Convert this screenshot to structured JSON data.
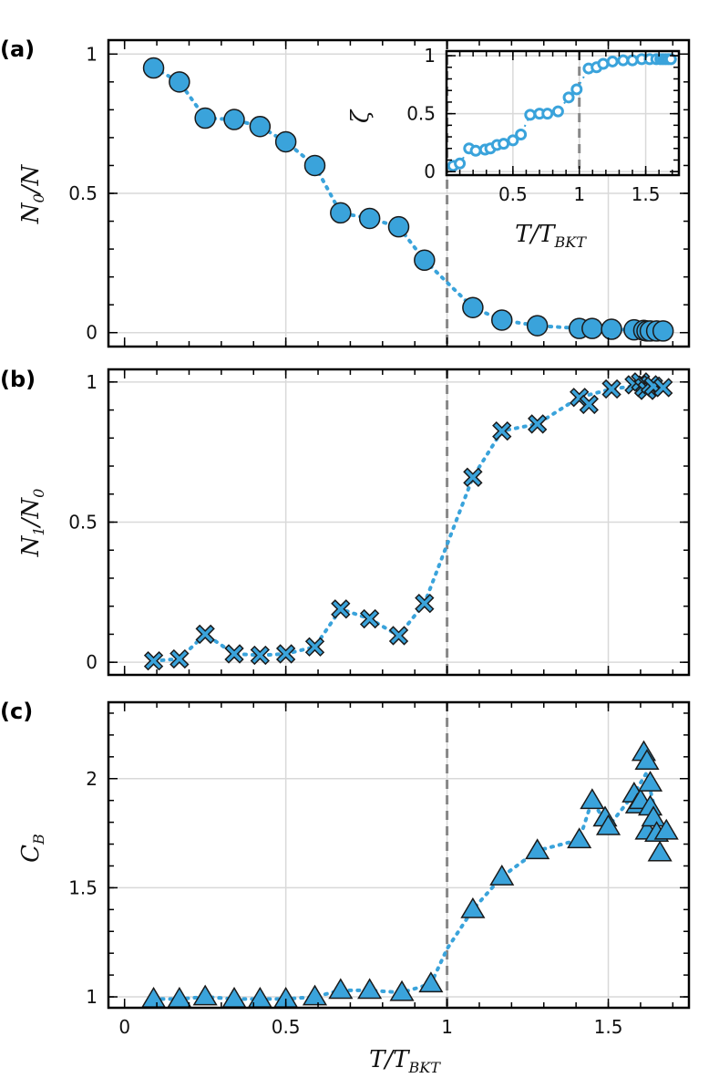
{
  "colors": {
    "marker": "#3aa3db",
    "edge": "#1a1a1a",
    "trend": "#3aa3db",
    "vline": "#888888"
  },
  "chart_data": [
    {
      "panel": "(a)",
      "type": "scatter",
      "marker": "circle",
      "ylabel": "N_0/N",
      "ylabel_main": "N",
      "ylabel_sub": "0",
      "ylabel_rest": "/N",
      "xlim": [
        -0.05,
        1.75
      ],
      "ylim": [
        -0.05,
        1.05
      ],
      "yticks": [
        0,
        0.5,
        1
      ],
      "ytick_labels": [
        "0",
        "0.5",
        "1"
      ],
      "vline_x": 1,
      "x": [
        0.09,
        0.17,
        0.25,
        0.34,
        0.42,
        0.5,
        0.59,
        0.67,
        0.76,
        0.85,
        0.93,
        1.08,
        1.17,
        1.28,
        1.41,
        1.45,
        1.51,
        1.58,
        1.61,
        1.62,
        1.63,
        1.65,
        1.67
      ],
      "y": [
        0.95,
        0.9,
        0.77,
        0.765,
        0.74,
        0.685,
        0.6,
        0.43,
        0.41,
        0.38,
        0.26,
        0.09,
        0.045,
        0.025,
        0.015,
        0.015,
        0.012,
        0.01,
        0.008,
        0.006,
        0.006,
        0.006,
        0.006
      ],
      "trend_x": [
        0.09,
        0.17,
        0.25,
        0.34,
        0.42,
        0.5,
        0.59,
        0.67,
        0.76,
        0.85,
        0.93,
        1.0,
        1.08,
        1.17,
        1.28,
        1.41,
        1.51,
        1.61,
        1.67
      ],
      "trend_y": [
        0.95,
        0.9,
        0.77,
        0.765,
        0.74,
        0.685,
        0.6,
        0.43,
        0.41,
        0.38,
        0.26,
        0.18,
        0.09,
        0.045,
        0.025,
        0.015,
        0.012,
        0.008,
        0.006
      ]
    },
    {
      "panel": "(b)",
      "type": "scatter",
      "marker": "x",
      "ylabel": "N_1/N_0",
      "ylabel_main": "N",
      "ylabel_sub": "1",
      "ylabel_rest": "/N",
      "ylabel_sub2": "0",
      "xlim": [
        -0.05,
        1.75
      ],
      "ylim": [
        -0.045,
        1.045
      ],
      "yticks": [
        0,
        0.5,
        1
      ],
      "ytick_labels": [
        "0",
        "0.5",
        "1"
      ],
      "vline_x": 1,
      "x": [
        0.09,
        0.17,
        0.25,
        0.34,
        0.42,
        0.5,
        0.59,
        0.67,
        0.76,
        0.85,
        0.93,
        1.08,
        1.17,
        1.28,
        1.41,
        1.44,
        1.51,
        1.58,
        1.6,
        1.61,
        1.62,
        1.63,
        1.64,
        1.67
      ],
      "y": [
        0.005,
        0.012,
        0.1,
        0.03,
        0.025,
        0.03,
        0.055,
        0.19,
        0.155,
        0.095,
        0.21,
        0.66,
        0.825,
        0.85,
        0.945,
        0.92,
        0.975,
        0.99,
        1.0,
        0.98,
        0.97,
        0.99,
        0.985,
        0.98
      ],
      "trend_x": [
        0.09,
        0.17,
        0.25,
        0.34,
        0.42,
        0.5,
        0.59,
        0.67,
        0.76,
        0.85,
        0.93,
        1.0,
        1.08,
        1.17,
        1.28,
        1.41,
        1.51,
        1.61,
        1.67
      ],
      "trend_y": [
        0.005,
        0.012,
        0.1,
        0.03,
        0.025,
        0.03,
        0.055,
        0.19,
        0.155,
        0.095,
        0.21,
        0.42,
        0.66,
        0.825,
        0.85,
        0.945,
        0.975,
        0.99,
        0.98
      ]
    },
    {
      "panel": "(c)",
      "type": "scatter",
      "marker": "triangle",
      "ylabel": "C_B",
      "ylabel_main": "C",
      "ylabel_sub": "B",
      "ylabel_rest": "",
      "xlim": [
        -0.05,
        1.75
      ],
      "ylim": [
        0.95,
        2.35
      ],
      "yticks": [
        1,
        1.5,
        2
      ],
      "ytick_labels": [
        "1",
        "1.5",
        "2"
      ],
      "xticks": [
        0,
        0.5,
        1,
        1.5
      ],
      "xtick_labels": [
        "0",
        "0.5",
        "1",
        "1.5"
      ],
      "xlabel": "T/T_BKT",
      "xlabel_main": "T",
      "xlabel_rest": "/T",
      "xlabel_sub": "BKT",
      "vline_x": 1,
      "x": [
        0.09,
        0.17,
        0.25,
        0.34,
        0.42,
        0.5,
        0.59,
        0.67,
        0.76,
        0.86,
        0.95,
        1.08,
        1.17,
        1.28,
        1.41,
        1.45,
        1.49,
        1.5,
        1.58,
        1.59,
        1.6,
        1.61,
        1.62,
        1.62,
        1.63,
        1.63,
        1.64,
        1.65,
        1.66,
        1.68
      ],
      "y": [
        0.99,
        0.99,
        1.0,
        0.99,
        0.99,
        0.99,
        1.0,
        1.03,
        1.03,
        1.02,
        1.06,
        1.4,
        1.55,
        1.67,
        1.72,
        1.9,
        1.82,
        1.78,
        1.93,
        1.88,
        1.9,
        2.12,
        2.08,
        1.76,
        1.98,
        1.87,
        1.82,
        1.75,
        1.66,
        1.76
      ],
      "trend_x": [
        0.09,
        0.17,
        0.25,
        0.34,
        0.42,
        0.5,
        0.59,
        0.67,
        0.76,
        0.86,
        0.95,
        1.0,
        1.08,
        1.17,
        1.28,
        1.41,
        1.45,
        1.5,
        1.58,
        1.62,
        1.63,
        1.65
      ],
      "trend_y": [
        0.99,
        0.99,
        1.0,
        0.99,
        0.99,
        0.99,
        1.0,
        1.03,
        1.03,
        1.02,
        1.06,
        1.22,
        1.4,
        1.55,
        1.67,
        1.72,
        1.9,
        1.78,
        1.93,
        2.03,
        1.95,
        1.82
      ]
    },
    {
      "panel": "inset",
      "type": "scatter",
      "marker": "open-circle",
      "ylabel": "ζ",
      "xlabel": "T/T_BKT",
      "xlabel_main": "T",
      "xlabel_rest": "/T",
      "xlabel_sub": "BKT",
      "xlim": [
        0.0,
        1.75
      ],
      "ylim": [
        -0.03,
        1.04
      ],
      "yticks": [
        0,
        0.5,
        1
      ],
      "ytick_labels": [
        "0",
        "0.5",
        "1"
      ],
      "xticks": [
        0.5,
        1,
        1.5
      ],
      "xtick_labels": [
        "0.5",
        "1",
        "1.5"
      ],
      "vline_x": 1,
      "x": [
        0.05,
        0.1,
        0.17,
        0.22,
        0.29,
        0.33,
        0.38,
        0.43,
        0.5,
        0.56,
        0.63,
        0.7,
        0.76,
        0.84,
        0.92,
        0.98,
        1.07,
        1.13,
        1.18,
        1.25,
        1.33,
        1.4,
        1.47,
        1.53,
        1.58,
        1.61,
        1.63,
        1.65,
        1.67,
        1.69
      ],
      "y": [
        0.05,
        0.07,
        0.2,
        0.18,
        0.19,
        0.2,
        0.23,
        0.24,
        0.27,
        0.32,
        0.49,
        0.5,
        0.5,
        0.52,
        0.64,
        0.71,
        0.89,
        0.9,
        0.93,
        0.95,
        0.96,
        0.96,
        0.97,
        0.97,
        0.97,
        0.97,
        0.97,
        0.97,
        0.97,
        0.97
      ]
    }
  ]
}
